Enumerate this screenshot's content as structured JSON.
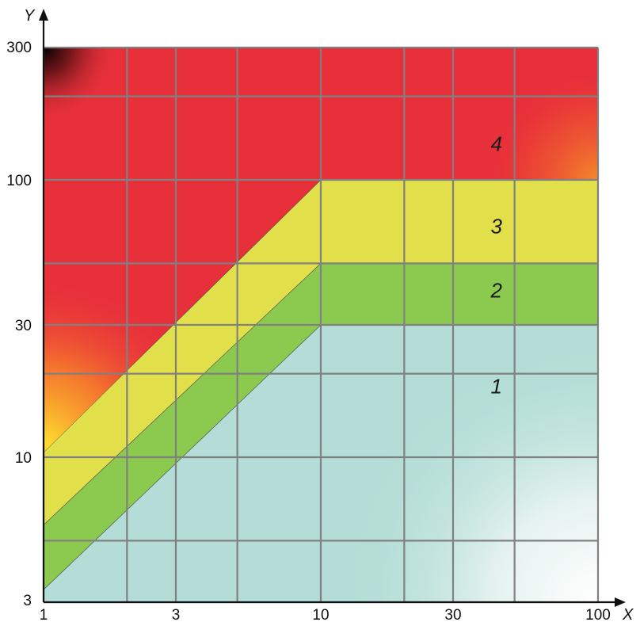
{
  "chart_data": {
    "type": "area",
    "x_scale": "log",
    "y_scale": "log",
    "xlim": [
      1,
      100
    ],
    "ylim": [
      3,
      300
    ],
    "xlabel": "X",
    "ylabel": "Y",
    "x_ticks": [
      1,
      3,
      10,
      30,
      100
    ],
    "y_ticks": [
      3,
      10,
      30,
      100,
      300
    ],
    "x_gridlines": [
      1,
      2,
      3,
      5,
      10,
      20,
      30,
      50,
      100
    ],
    "y_gridlines": [
      3,
      5,
      10,
      20,
      30,
      50,
      100,
      200,
      300
    ],
    "grid": true,
    "colors": {
      "zone_1": "#b3ddd6",
      "zone_2": "#8cc94f",
      "zone_3": "#e2e04a",
      "zone_4": "#e8303a",
      "gridline": "#808080"
    },
    "zones": [
      {
        "name": "1",
        "label": "1",
        "boundary_upper": [
          [
            1,
            3.33
          ],
          [
            10,
            30
          ],
          [
            100,
            30
          ]
        ]
      },
      {
        "name": "2",
        "label": "2",
        "boundary_upper": [
          [
            1,
            5.7
          ],
          [
            10,
            50
          ],
          [
            100,
            50
          ]
        ]
      },
      {
        "name": "3",
        "label": "3",
        "boundary_upper": [
          [
            1,
            10.4
          ],
          [
            10,
            100
          ],
          [
            100,
            100
          ]
        ]
      },
      {
        "name": "4",
        "label": "4",
        "boundary_upper": [
          [
            1,
            300
          ],
          [
            100,
            300
          ]
        ]
      }
    ],
    "zone_label_positions": [
      {
        "label": "1",
        "x": 43,
        "y": 18
      },
      {
        "label": "2",
        "x": 43,
        "y": 40
      },
      {
        "label": "3",
        "x": 43,
        "y": 68
      },
      {
        "label": "4",
        "x": 43,
        "y": 135
      }
    ]
  }
}
